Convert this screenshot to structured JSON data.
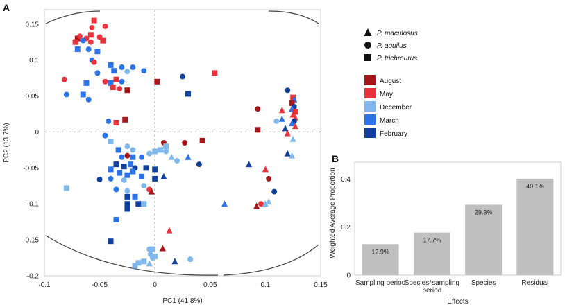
{
  "panel_a_label": "A",
  "panel_b_label": "B",
  "colors": {
    "august": "#a4161a",
    "may": "#e8333d",
    "december": "#80b8ec",
    "march": "#2b73e6",
    "february": "#10409c",
    "bar": "#bfbfbf"
  },
  "legend": {
    "species": [
      {
        "label": "P. maculosus",
        "shape": "triangle"
      },
      {
        "label": "P. aquilus",
        "shape": "circle"
      },
      {
        "label": "P. trichrourus",
        "shape": "square"
      }
    ],
    "periods": [
      {
        "label": "August",
        "color": "#a4161a"
      },
      {
        "label": "May",
        "color": "#e8333d"
      },
      {
        "label": "December",
        "color": "#80b8ec"
      },
      {
        "label": "March",
        "color": "#2b73e6"
      },
      {
        "label": "February",
        "color": "#10409c"
      }
    ]
  },
  "chart_data": [
    {
      "type": "scatter",
      "title": "",
      "xlabel": "PC1 (41.8%)",
      "ylabel": "PC2 (13.7%)",
      "xlim": [
        -0.1,
        0.15
      ],
      "ylim": [
        -0.2,
        0.17
      ],
      "xticks": [
        "-0.1",
        "-0.05",
        "0",
        "0.05",
        "0.1",
        "0.15"
      ],
      "xtick_values": [
        -0.1,
        -0.05,
        0,
        0.05,
        0.1,
        0.15
      ],
      "yticks": [
        "0.15",
        "0.1",
        "0.05",
        "0",
        "-0.05",
        "-0.1",
        "-0.15",
        "-0.2"
      ],
      "ytick_values": [
        0.15,
        0.1,
        0.05,
        0,
        -0.05,
        -0.1,
        -0.15,
        -0.2
      ],
      "reference_lines": {
        "x": 0,
        "y": 0
      },
      "points": [
        {
          "x": -0.055,
          "y": 0.155,
          "s": "square",
          "p": "may"
        },
        {
          "x": -0.057,
          "y": 0.145,
          "s": "circle",
          "p": "may"
        },
        {
          "x": -0.045,
          "y": 0.147,
          "s": "circle",
          "p": "may"
        },
        {
          "x": -0.058,
          "y": 0.135,
          "s": "square",
          "p": "may"
        },
        {
          "x": -0.07,
          "y": 0.13,
          "s": "square",
          "p": "august"
        },
        {
          "x": -0.068,
          "y": 0.133,
          "s": "circle",
          "p": "may"
        },
        {
          "x": -0.062,
          "y": 0.13,
          "s": "circle",
          "p": "may"
        },
        {
          "x": -0.05,
          "y": 0.132,
          "s": "circle",
          "p": "may"
        },
        {
          "x": -0.072,
          "y": 0.125,
          "s": "square",
          "p": "may"
        },
        {
          "x": -0.065,
          "y": 0.127,
          "s": "circle",
          "p": "march"
        },
        {
          "x": -0.058,
          "y": 0.125,
          "s": "circle",
          "p": "may"
        },
        {
          "x": -0.047,
          "y": 0.127,
          "s": "square",
          "p": "may"
        },
        {
          "x": -0.07,
          "y": 0.115,
          "s": "square",
          "p": "march"
        },
        {
          "x": -0.06,
          "y": 0.115,
          "s": "circle",
          "p": "march"
        },
        {
          "x": -0.052,
          "y": 0.112,
          "s": "square",
          "p": "march"
        },
        {
          "x": -0.057,
          "y": 0.1,
          "s": "circle",
          "p": "march"
        },
        {
          "x": -0.055,
          "y": 0.097,
          "s": "circle",
          "p": "may"
        },
        {
          "x": -0.04,
          "y": 0.093,
          "s": "square",
          "p": "march"
        },
        {
          "x": -0.03,
          "y": 0.09,
          "s": "circle",
          "p": "march"
        },
        {
          "x": -0.02,
          "y": 0.09,
          "s": "circle",
          "p": "march"
        },
        {
          "x": -0.037,
          "y": 0.085,
          "s": "square",
          "p": "march"
        },
        {
          "x": -0.025,
          "y": 0.084,
          "s": "circle",
          "p": "december"
        },
        {
          "x": -0.052,
          "y": 0.082,
          "s": "circle",
          "p": "march"
        },
        {
          "x": -0.01,
          "y": 0.085,
          "s": "circle",
          "p": "march"
        },
        {
          "x": -0.082,
          "y": 0.073,
          "s": "circle",
          "p": "may"
        },
        {
          "x": -0.035,
          "y": 0.073,
          "s": "square",
          "p": "may"
        },
        {
          "x": -0.04,
          "y": 0.068,
          "s": "square",
          "p": "march"
        },
        {
          "x": -0.045,
          "y": 0.07,
          "s": "circle",
          "p": "may"
        },
        {
          "x": -0.03,
          "y": 0.07,
          "s": "circle",
          "p": "march"
        },
        {
          "x": -0.062,
          "y": 0.068,
          "s": "square",
          "p": "march"
        },
        {
          "x": -0.038,
          "y": 0.062,
          "s": "square",
          "p": "may"
        },
        {
          "x": -0.032,
          "y": 0.06,
          "s": "circle",
          "p": "may"
        },
        {
          "x": -0.025,
          "y": 0.058,
          "s": "square",
          "p": "august"
        },
        {
          "x": -0.08,
          "y": 0.052,
          "s": "circle",
          "p": "march"
        },
        {
          "x": -0.065,
          "y": 0.052,
          "s": "square",
          "p": "march"
        },
        {
          "x": -0.06,
          "y": 0.045,
          "s": "circle",
          "p": "march"
        },
        {
          "x": 0.002,
          "y": 0.07,
          "s": "square",
          "p": "august"
        },
        {
          "x": 0.025,
          "y": 0.077,
          "s": "circle",
          "p": "february"
        },
        {
          "x": 0.054,
          "y": 0.082,
          "s": "square",
          "p": "may"
        },
        {
          "x": 0.03,
          "y": 0.053,
          "s": "square",
          "p": "february"
        },
        {
          "x": -0.035,
          "y": 0.013,
          "s": "square",
          "p": "may"
        },
        {
          "x": -0.027,
          "y": 0.017,
          "s": "square",
          "p": "august"
        },
        {
          "x": -0.042,
          "y": 0.015,
          "s": "circle",
          "p": "march"
        },
        {
          "x": -0.045,
          "y": -0.005,
          "s": "circle",
          "p": "march"
        },
        {
          "x": -0.04,
          "y": -0.013,
          "s": "square",
          "p": "december"
        },
        {
          "x": 0.008,
          "y": -0.015,
          "s": "circle",
          "p": "august"
        },
        {
          "x": 0.01,
          "y": -0.02,
          "s": "square",
          "p": "december"
        },
        {
          "x": 0.027,
          "y": -0.015,
          "s": "circle",
          "p": "august"
        },
        {
          "x": 0.043,
          "y": -0.012,
          "s": "square",
          "p": "august"
        },
        {
          "x": -0.025,
          "y": -0.02,
          "s": "circle",
          "p": "december"
        },
        {
          "x": -0.033,
          "y": -0.025,
          "s": "square",
          "p": "march"
        },
        {
          "x": -0.02,
          "y": -0.025,
          "s": "circle",
          "p": "december"
        },
        {
          "x": 0.005,
          "y": -0.025,
          "s": "square",
          "p": "december"
        },
        {
          "x": 0.01,
          "y": -0.027,
          "s": "circle",
          "p": "december"
        },
        {
          "x": 0.0,
          "y": -0.027,
          "s": "square",
          "p": "december"
        },
        {
          "x": -0.005,
          "y": -0.03,
          "s": "circle",
          "p": "december"
        },
        {
          "x": -0.012,
          "y": -0.035,
          "s": "circle",
          "p": "march"
        },
        {
          "x": -0.025,
          "y": -0.033,
          "s": "circle",
          "p": "august"
        },
        {
          "x": -0.02,
          "y": -0.035,
          "s": "square",
          "p": "march"
        },
        {
          "x": -0.03,
          "y": -0.035,
          "s": "circle",
          "p": "march"
        },
        {
          "x": 0.015,
          "y": -0.035,
          "s": "triangle",
          "p": "december"
        },
        {
          "x": 0.02,
          "y": -0.04,
          "s": "circle",
          "p": "december"
        },
        {
          "x": 0.03,
          "y": -0.035,
          "s": "triangle",
          "p": "march"
        },
        {
          "x": 0.04,
          "y": -0.045,
          "s": "circle",
          "p": "february"
        },
        {
          "x": -0.035,
          "y": -0.045,
          "s": "square",
          "p": "february"
        },
        {
          "x": -0.028,
          "y": -0.048,
          "s": "square",
          "p": "february"
        },
        {
          "x": -0.022,
          "y": -0.045,
          "s": "square",
          "p": "march"
        },
        {
          "x": -0.018,
          "y": -0.05,
          "s": "circle",
          "p": "february"
        },
        {
          "x": -0.008,
          "y": -0.05,
          "s": "square",
          "p": "february"
        },
        {
          "x": 0.0,
          "y": -0.052,
          "s": "square",
          "p": "february"
        },
        {
          "x": -0.04,
          "y": -0.052,
          "s": "square",
          "p": "march"
        },
        {
          "x": -0.02,
          "y": -0.055,
          "s": "square",
          "p": "march"
        },
        {
          "x": -0.025,
          "y": -0.06,
          "s": "square",
          "p": "march"
        },
        {
          "x": -0.032,
          "y": -0.057,
          "s": "square",
          "p": "march"
        },
        {
          "x": -0.04,
          "y": -0.065,
          "s": "circle",
          "p": "march"
        },
        {
          "x": -0.05,
          "y": -0.066,
          "s": "circle",
          "p": "february"
        },
        {
          "x": -0.028,
          "y": -0.067,
          "s": "circle",
          "p": "december"
        },
        {
          "x": -0.012,
          "y": -0.062,
          "s": "square",
          "p": "march"
        },
        {
          "x": 0.008,
          "y": -0.062,
          "s": "triangle",
          "p": "february"
        },
        {
          "x": 0.0,
          "y": -0.065,
          "s": "square",
          "p": "february"
        },
        {
          "x": -0.01,
          "y": -0.075,
          "s": "circle",
          "p": "december"
        },
        {
          "x": -0.08,
          "y": -0.078,
          "s": "square",
          "p": "december"
        },
        {
          "x": -0.035,
          "y": -0.08,
          "s": "circle",
          "p": "march"
        },
        {
          "x": -0.025,
          "y": -0.082,
          "s": "circle",
          "p": "december"
        },
        {
          "x": -0.005,
          "y": -0.08,
          "s": "circle",
          "p": "may"
        },
        {
          "x": -0.003,
          "y": -0.083,
          "s": "triangle",
          "p": "august"
        },
        {
          "x": -0.025,
          "y": -0.09,
          "s": "square",
          "p": "february"
        },
        {
          "x": -0.018,
          "y": -0.09,
          "s": "square",
          "p": "march"
        },
        {
          "x": -0.015,
          "y": -0.1,
          "s": "square",
          "p": "february"
        },
        {
          "x": -0.025,
          "y": -0.1,
          "s": "square",
          "p": "february"
        },
        {
          "x": -0.01,
          "y": -0.1,
          "s": "square",
          "p": "december"
        },
        {
          "x": -0.025,
          "y": -0.107,
          "s": "square",
          "p": "february"
        },
        {
          "x": -0.035,
          "y": -0.122,
          "s": "square",
          "p": "march"
        },
        {
          "x": -0.04,
          "y": -0.152,
          "s": "square",
          "p": "february"
        },
        {
          "x": 0.013,
          "y": -0.137,
          "s": "triangle",
          "p": "may"
        },
        {
          "x": 0.007,
          "y": -0.162,
          "s": "triangle",
          "p": "august"
        },
        {
          "x": -0.005,
          "y": -0.163,
          "s": "circle",
          "p": "december"
        },
        {
          "x": -0.002,
          "y": -0.163,
          "s": "square",
          "p": "december"
        },
        {
          "x": -0.004,
          "y": -0.17,
          "s": "circle",
          "p": "december"
        },
        {
          "x": -0.002,
          "y": -0.175,
          "s": "circle",
          "p": "december"
        },
        {
          "x": 0.0,
          "y": -0.173,
          "s": "square",
          "p": "december"
        },
        {
          "x": -0.01,
          "y": -0.18,
          "s": "square",
          "p": "december"
        },
        {
          "x": -0.015,
          "y": -0.182,
          "s": "square",
          "p": "december"
        },
        {
          "x": -0.018,
          "y": -0.186,
          "s": "square",
          "p": "december"
        },
        {
          "x": -0.005,
          "y": -0.183,
          "s": "triangle",
          "p": "december"
        },
        {
          "x": 0.018,
          "y": -0.18,
          "s": "triangle",
          "p": "february"
        },
        {
          "x": 0.032,
          "y": -0.177,
          "s": "circle",
          "p": "december"
        },
        {
          "x": 0.063,
          "y": -0.1,
          "s": "triangle",
          "p": "march"
        },
        {
          "x": 0.092,
          "y": -0.103,
          "s": "triangle",
          "p": "august"
        },
        {
          "x": 0.096,
          "y": -0.1,
          "s": "circle",
          "p": "may"
        },
        {
          "x": 0.1,
          "y": -0.1,
          "s": "triangle",
          "p": "december"
        },
        {
          "x": 0.103,
          "y": -0.097,
          "s": "triangle",
          "p": "december"
        },
        {
          "x": 0.108,
          "y": -0.083,
          "s": "circle",
          "p": "february"
        },
        {
          "x": 0.103,
          "y": -0.065,
          "s": "circle",
          "p": "august"
        },
        {
          "x": 0.085,
          "y": -0.045,
          "s": "triangle",
          "p": "february"
        },
        {
          "x": 0.1,
          "y": -0.052,
          "s": "triangle",
          "p": "may"
        },
        {
          "x": 0.11,
          "y": 0.015,
          "s": "circle",
          "p": "december"
        },
        {
          "x": 0.093,
          "y": 0.032,
          "s": "circle",
          "p": "august"
        },
        {
          "x": 0.093,
          "y": 0.003,
          "s": "square",
          "p": "august"
        },
        {
          "x": 0.12,
          "y": 0.058,
          "s": "circle",
          "p": "february"
        },
        {
          "x": 0.125,
          "y": 0.048,
          "s": "square",
          "p": "may"
        },
        {
          "x": 0.126,
          "y": 0.045,
          "s": "triangle",
          "p": "march"
        },
        {
          "x": 0.124,
          "y": 0.04,
          "s": "square",
          "p": "august"
        },
        {
          "x": 0.126,
          "y": 0.035,
          "s": "circle",
          "p": "february"
        },
        {
          "x": 0.124,
          "y": 0.032,
          "s": "triangle",
          "p": "march"
        },
        {
          "x": 0.127,
          "y": 0.028,
          "s": "square",
          "p": "may"
        },
        {
          "x": 0.125,
          "y": 0.024,
          "s": "triangle",
          "p": "may"
        },
        {
          "x": 0.127,
          "y": 0.02,
          "s": "triangle",
          "p": "may"
        },
        {
          "x": 0.126,
          "y": 0.015,
          "s": "circle",
          "p": "february"
        },
        {
          "x": 0.124,
          "y": 0.012,
          "s": "triangle",
          "p": "march"
        },
        {
          "x": 0.127,
          "y": 0.008,
          "s": "triangle",
          "p": "may"
        },
        {
          "x": 0.115,
          "y": 0.03,
          "s": "triangle",
          "p": "may"
        },
        {
          "x": 0.115,
          "y": 0.018,
          "s": "triangle",
          "p": "march"
        },
        {
          "x": 0.118,
          "y": 0.005,
          "s": "triangle",
          "p": "february"
        },
        {
          "x": 0.12,
          "y": -0.002,
          "s": "triangle",
          "p": "may"
        },
        {
          "x": 0.125,
          "y": -0.01,
          "s": "triangle",
          "p": "december"
        },
        {
          "x": 0.12,
          "y": -0.03,
          "s": "triangle",
          "p": "february"
        },
        {
          "x": 0.124,
          "y": -0.033,
          "s": "triangle",
          "p": "december"
        }
      ]
    },
    {
      "type": "bar",
      "title": "",
      "xlabel": "Effects",
      "ylabel": "Weighted Average Proportion",
      "categories": [
        "Sampling period",
        "Species*sampling period",
        "Species",
        "Residual"
      ],
      "category_lines": [
        [
          "Sampling period"
        ],
        [
          "Species*sampling",
          "period"
        ],
        [
          "Species"
        ],
        [
          "Residual"
        ]
      ],
      "values": [
        0.129,
        0.177,
        0.293,
        0.401
      ],
      "data_labels": [
        "12.9%",
        "17.7%",
        "29.3%",
        "40.1%"
      ],
      "ylim": [
        0,
        0.47
      ],
      "yticks": [
        "0",
        "0.2",
        "0.4"
      ],
      "ytick_values": [
        0,
        0.2,
        0.4
      ]
    }
  ]
}
